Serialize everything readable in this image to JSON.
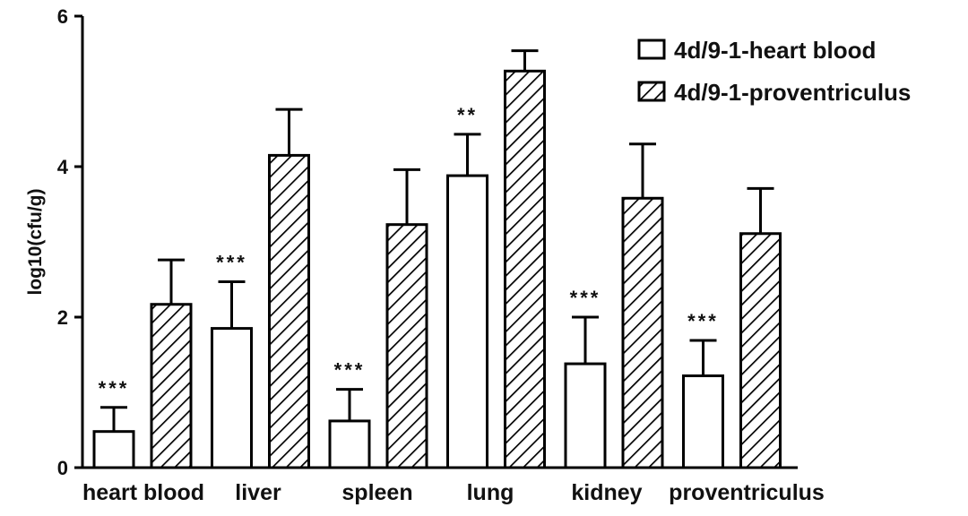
{
  "chart_data": {
    "type": "bar",
    "ylabel": "log10(cfu/g)",
    "ylim": [
      0,
      6
    ],
    "yticks": [
      "0",
      "2",
      "4",
      "6"
    ],
    "grid": false,
    "legend_position": "top-right",
    "categories": [
      "heart blood",
      "liver",
      "spleen",
      "lung",
      "kidney",
      "proventriculus"
    ],
    "series": [
      {
        "name": "4d/9-1-heart blood",
        "fill": "open",
        "values": [
          0.48,
          1.85,
          0.62,
          3.88,
          1.38,
          1.22
        ],
        "errors": [
          0.32,
          0.62,
          0.42,
          0.55,
          0.62,
          0.47
        ],
        "significance": [
          "***",
          "***",
          "***",
          "**",
          "***",
          "***"
        ]
      },
      {
        "name": "4d/9-1-proventriculus",
        "fill": "hatched",
        "values": [
          2.17,
          4.15,
          3.23,
          5.27,
          3.58,
          3.11
        ],
        "errors": [
          0.59,
          0.61,
          0.73,
          0.27,
          0.72,
          0.6
        ],
        "significance": [
          "",
          "",
          "",
          "",
          "",
          ""
        ]
      }
    ],
    "colors": {
      "stroke": "#000000",
      "background": "#ffffff"
    }
  }
}
